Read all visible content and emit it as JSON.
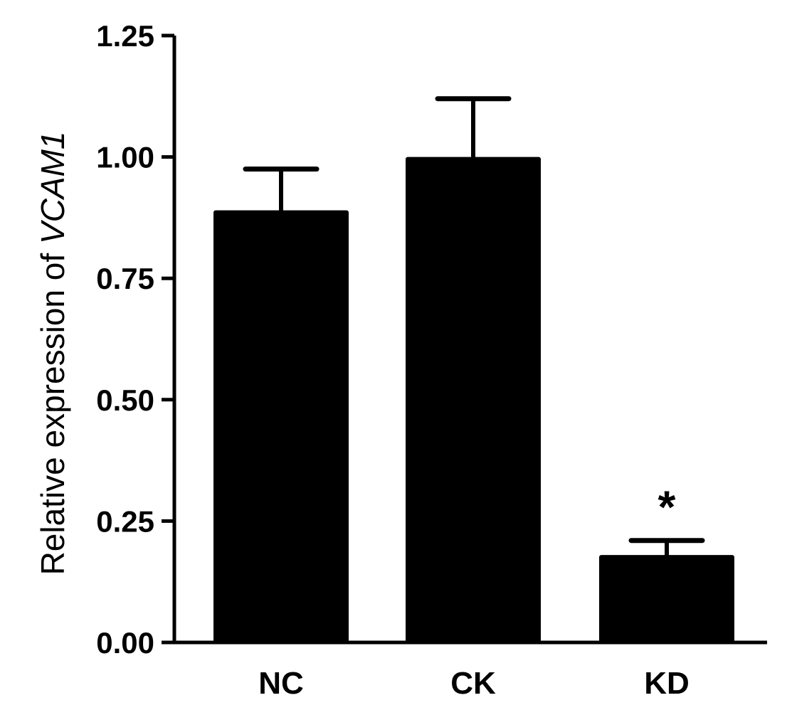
{
  "chart_data": {
    "type": "bar",
    "categories": [
      "NC",
      "CK",
      "KD"
    ],
    "values": [
      0.89,
      1.0,
      0.18
    ],
    "errors": [
      0.085,
      0.12,
      0.03
    ],
    "annotations": [
      "",
      "",
      "*"
    ],
    "ylabel_prefix": "Relative expression of ",
    "ylabel_gene": "VCAM1",
    "ylim": [
      0,
      1.25
    ],
    "yticks": [
      "0.00",
      "0.25",
      "0.50",
      "0.75",
      "1.00",
      "1.25"
    ],
    "bar_color": "#000000",
    "grid": false,
    "legend": "none"
  }
}
